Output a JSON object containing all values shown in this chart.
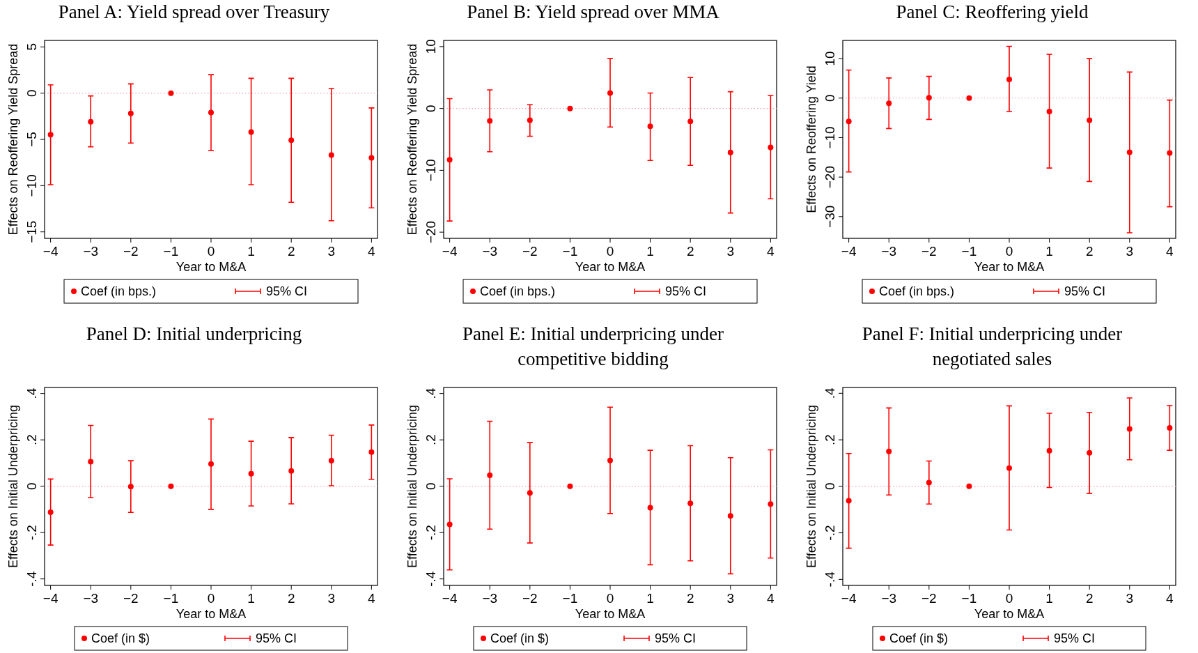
{
  "chart_data": [
    {
      "type": "scatter",
      "title": "Panel A: Yield spread over Treasury",
      "xlabel": "Year to M&A",
      "ylabel": "Effects on Reoffering Yield Spread",
      "x": [
        -4,
        -3,
        -2,
        -1,
        0,
        1,
        2,
        3,
        4
      ],
      "xlim": [
        -4.15,
        4.15
      ],
      "xticks": [
        {
          "value": -4,
          "label": "−4"
        },
        {
          "value": -3,
          "label": "−3"
        },
        {
          "value": -2,
          "label": "−2"
        },
        {
          "value": -1,
          "label": "−1"
        },
        0,
        1,
        2,
        3,
        4
      ],
      "ylim": [
        -15.7,
        5.7
      ],
      "yticks": [
        {
          "value": -15,
          "label": "−15"
        },
        {
          "value": -10,
          "label": "−10"
        },
        {
          "value": -5,
          "label": "−5"
        },
        0,
        5
      ],
      "grid": false,
      "legend": "bottom",
      "ref_lines": [
        {
          "axis": "y",
          "value": 0,
          "color": "#e8a0b4",
          "line_style": "dotted"
        }
      ],
      "series": [
        {
          "name": "Coef (in bps.)",
          "color": "#ff0000",
          "marker": "circle",
          "values": [
            -4.5,
            -3.1,
            -2.2,
            0,
            -2.1,
            -4.2,
            -5.1,
            -6.7,
            -7.0
          ],
          "errors": [
            [
              -9.9,
              0.9
            ],
            [
              -5.8,
              -0.3
            ],
            [
              -5.4,
              1.0
            ],
            null,
            [
              -6.2,
              2.0
            ],
            [
              -9.9,
              1.6
            ],
            [
              -11.8,
              1.6
            ],
            [
              -13.8,
              0.5
            ],
            [
              -12.4,
              -1.6
            ]
          ]
        }
      ],
      "annotations": [
        "95% CI"
      ]
    },
    {
      "type": "scatter",
      "title": "Panel B: Yield spread over MMA",
      "xlabel": "Year to M&A",
      "ylabel": "Effects on Reoffering Yield Spread",
      "x": [
        -4,
        -3,
        -2,
        -1,
        0,
        1,
        2,
        3,
        4
      ],
      "xlim": [
        -4.15,
        4.15
      ],
      "xticks": [
        {
          "value": -4,
          "label": "−4"
        },
        {
          "value": -3,
          "label": "−3"
        },
        {
          "value": -2,
          "label": "−2"
        },
        {
          "value": -1,
          "label": "−1"
        },
        0,
        1,
        2,
        3,
        4
      ],
      "ylim": [
        -21,
        11
      ],
      "yticks": [
        {
          "value": -20,
          "label": "−20"
        },
        {
          "value": -10,
          "label": "−10"
        },
        0,
        10
      ],
      "grid": false,
      "legend": "bottom",
      "ref_lines": [
        {
          "axis": "y",
          "value": 0,
          "color": "#e8a0b4",
          "line_style": "dotted"
        }
      ],
      "series": [
        {
          "name": "Coef (in bps.)",
          "color": "#ff0000",
          "marker": "circle",
          "values": [
            -8.3,
            -2.0,
            -1.9,
            0,
            2.5,
            -2.9,
            -2.1,
            -7.1,
            -6.3
          ],
          "errors": [
            [
              -18.2,
              1.6
            ],
            [
              -7.0,
              3.0
            ],
            [
              -4.5,
              0.6
            ],
            null,
            [
              -3.0,
              8.1
            ],
            [
              -8.4,
              2.5
            ],
            [
              -9.2,
              5.0
            ],
            [
              -16.9,
              2.7
            ],
            [
              -14.6,
              2.1
            ]
          ]
        }
      ],
      "annotations": [
        "95% CI"
      ]
    },
    {
      "type": "scatter",
      "title": "Panel C: Reoffering yield",
      "xlabel": "Year to M&A",
      "ylabel": "Effects on Reoffering Yield",
      "x": [
        -4,
        -3,
        -2,
        -1,
        0,
        1,
        2,
        3,
        4
      ],
      "xlim": [
        -4.15,
        4.15
      ],
      "xticks": [
        {
          "value": -4,
          "label": "−4"
        },
        {
          "value": -3,
          "label": "−3"
        },
        {
          "value": -2,
          "label": "−2"
        },
        {
          "value": -1,
          "label": "−1"
        },
        0,
        1,
        2,
        3,
        4
      ],
      "ylim": [
        -35.5,
        14.6
      ],
      "yticks": [
        {
          "value": -30,
          "label": "−30"
        },
        {
          "value": -20,
          "label": "−20"
        },
        {
          "value": -10,
          "label": "−10"
        },
        0,
        10
      ],
      "grid": false,
      "legend": "bottom",
      "ref_lines": [
        {
          "axis": "y",
          "value": 0,
          "color": "#e8a0b4",
          "line_style": "dotted"
        }
      ],
      "series": [
        {
          "name": "Coef (in bps.)",
          "color": "#ff0000",
          "marker": "circle",
          "values": [
            -5.9,
            -1.3,
            0.1,
            0,
            4.7,
            -3.4,
            -5.6,
            -13.7,
            -13.9
          ],
          "errors": [
            [
              -18.7,
              7.1
            ],
            [
              -7.7,
              5.1
            ],
            [
              -5.4,
              5.5
            ],
            null,
            [
              -3.4,
              13.1
            ],
            [
              -17.7,
              11.1
            ],
            [
              -21.1,
              10.0
            ],
            [
              -34.1,
              6.6
            ],
            [
              -27.5,
              -0.5
            ]
          ]
        }
      ],
      "annotations": [
        "95% CI"
      ]
    },
    {
      "type": "scatter",
      "title": "Panel D: Initial underpricing",
      "xlabel": "Year to M&A",
      "ylabel": "Effects on Initial Underpricing",
      "x": [
        -4,
        -3,
        -2,
        -1,
        0,
        1,
        2,
        3,
        4
      ],
      "xlim": [
        -4.15,
        4.15
      ],
      "xticks": [
        {
          "value": -4,
          "label": "−4"
        },
        {
          "value": -3,
          "label": "−3"
        },
        {
          "value": -2,
          "label": "−2"
        },
        {
          "value": -1,
          "label": "−1"
        },
        0,
        1,
        2,
        3,
        4
      ],
      "ylim": [
        -0.428,
        0.426
      ],
      "yticks": [
        {
          "value": -0.4,
          "label": "-.4"
        },
        {
          "value": -0.2,
          "label": "-.2"
        },
        0,
        {
          "value": 0.2,
          "label": ".2"
        },
        {
          "value": 0.4,
          "label": ".4"
        }
      ],
      "grid": false,
      "legend": "bottom",
      "ref_lines": [
        {
          "axis": "y",
          "value": 0,
          "color": "#e8a0b4",
          "line_style": "dotted"
        }
      ],
      "series": [
        {
          "name": "Coef (in $)",
          "color": "#ff0000",
          "marker": "circle",
          "values": [
            -0.112,
            0.106,
            -0.002,
            0,
            0.096,
            0.054,
            0.066,
            0.11,
            0.147
          ],
          "errors": [
            [
              -0.254,
              0.031
            ],
            [
              -0.049,
              0.262
            ],
            [
              -0.113,
              0.11
            ],
            null,
            [
              -0.1,
              0.29
            ],
            [
              -0.085,
              0.194
            ],
            [
              -0.076,
              0.21
            ],
            [
              0.002,
              0.22
            ],
            [
              0.03,
              0.264
            ]
          ]
        }
      ],
      "annotations": [
        "95% CI"
      ]
    },
    {
      "type": "scatter",
      "title": "Panel E: Initial underpricing under competitive bidding",
      "xlabel": "Year to M&A",
      "ylabel": "Effects on Initial Underpricing",
      "x": [
        -4,
        -3,
        -2,
        -1,
        0,
        1,
        2,
        3,
        4
      ],
      "xlim": [
        -4.15,
        4.15
      ],
      "xticks": [
        {
          "value": -4,
          "label": "−4"
        },
        {
          "value": -3,
          "label": "−3"
        },
        {
          "value": -2,
          "label": "−2"
        },
        {
          "value": -1,
          "label": "−1"
        },
        0,
        1,
        2,
        3,
        4
      ],
      "ylim": [
        -0.428,
        0.426
      ],
      "yticks": [
        {
          "value": -0.4,
          "label": "-.4"
        },
        {
          "value": -0.2,
          "label": "-.2"
        },
        0,
        {
          "value": 0.2,
          "label": ".2"
        },
        {
          "value": 0.4,
          "label": ".4"
        }
      ],
      "grid": false,
      "legend": "bottom",
      "ref_lines": [
        {
          "axis": "y",
          "value": 0,
          "color": "#e8a0b4",
          "line_style": "dotted"
        }
      ],
      "series": [
        {
          "name": "Coef (in $)",
          "color": "#ff0000",
          "marker": "circle",
          "values": [
            -0.165,
            0.047,
            -0.029,
            0,
            0.111,
            -0.093,
            -0.074,
            -0.128,
            -0.077
          ],
          "errors": [
            [
              -0.361,
              0.032
            ],
            [
              -0.185,
              0.28
            ],
            [
              -0.245,
              0.188
            ],
            null,
            [
              -0.118,
              0.341
            ],
            [
              -0.339,
              0.155
            ],
            [
              -0.322,
              0.175
            ],
            [
              -0.378,
              0.123
            ],
            [
              -0.31,
              0.157
            ]
          ]
        }
      ],
      "annotations": [
        "95% CI"
      ]
    },
    {
      "type": "scatter",
      "title": "Panel F: Initial underpricing under negotiated sales",
      "xlabel": "Year to M&A",
      "ylabel": "Effects on Initial Underpricing",
      "x": [
        -4,
        -3,
        -2,
        -1,
        0,
        1,
        2,
        3,
        4
      ],
      "xlim": [
        -4.15,
        4.15
      ],
      "xticks": [
        {
          "value": -4,
          "label": "−4"
        },
        {
          "value": -3,
          "label": "−3"
        },
        {
          "value": -2,
          "label": "−2"
        },
        {
          "value": -1,
          "label": "−1"
        },
        0,
        1,
        2,
        3,
        4
      ],
      "ylim": [
        -0.426,
        0.425
      ],
      "yticks": [
        {
          "value": -0.4,
          "label": "-.4"
        },
        {
          "value": -0.2,
          "label": "-.2"
        },
        0,
        {
          "value": 0.2,
          "label": ".2"
        },
        {
          "value": 0.4,
          "label": ".4"
        }
      ],
      "grid": false,
      "legend": "bottom",
      "ref_lines": [
        {
          "axis": "y",
          "value": 0,
          "color": "#e8a0b4",
          "line_style": "dotted"
        }
      ],
      "series": [
        {
          "name": "Coef (in $)",
          "color": "#ff0000",
          "marker": "circle",
          "values": [
            -0.062,
            0.15,
            0.016,
            0,
            0.078,
            0.153,
            0.144,
            0.247,
            0.251
          ],
          "errors": [
            [
              -0.266,
              0.141
            ],
            [
              -0.037,
              0.337
            ],
            [
              -0.076,
              0.109
            ],
            null,
            [
              -0.188,
              0.346
            ],
            [
              -0.005,
              0.314
            ],
            [
              -0.03,
              0.318
            ],
            [
              0.114,
              0.38
            ],
            [
              0.155,
              0.347
            ]
          ]
        }
      ],
      "annotations": [
        "95% CI"
      ]
    }
  ]
}
